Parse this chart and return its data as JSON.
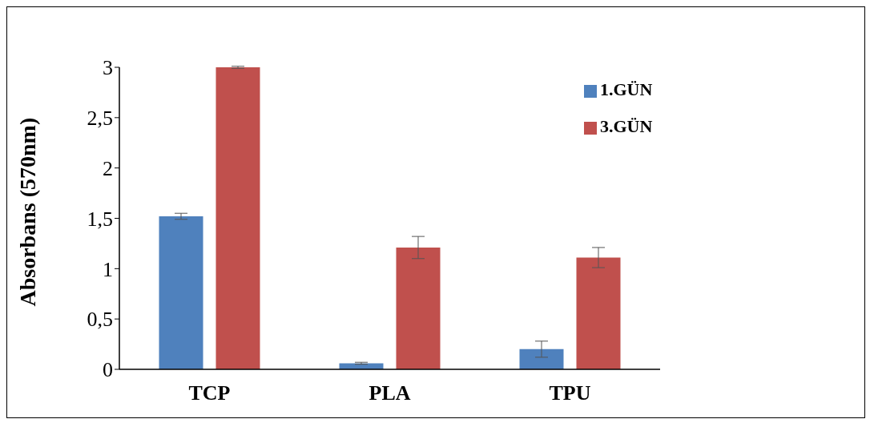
{
  "chart_data": {
    "type": "bar",
    "ylabel": "Absorbans  (570nm)",
    "categories": [
      "TCP",
      "PLA",
      "TPU"
    ],
    "series": [
      {
        "name": "1.GÜN",
        "color": "#4f81bd",
        "values": [
          1.52,
          0.06,
          0.2
        ],
        "errors": [
          0.03,
          0.01,
          0.08
        ]
      },
      {
        "name": "3.GÜN",
        "color": "#c0504d",
        "values": [
          3.0,
          1.21,
          1.11
        ],
        "errors": [
          0.01,
          0.11,
          0.1
        ]
      }
    ],
    "ylim": [
      0,
      3
    ],
    "yticks": [
      0,
      {
        "value": 0.5,
        "label": "0,5"
      },
      1,
      {
        "value": 1.5,
        "label": "1,5"
      },
      2,
      {
        "value": 2.5,
        "label": "2,5"
      },
      3
    ],
    "grid": false,
    "legend": "top right"
  }
}
